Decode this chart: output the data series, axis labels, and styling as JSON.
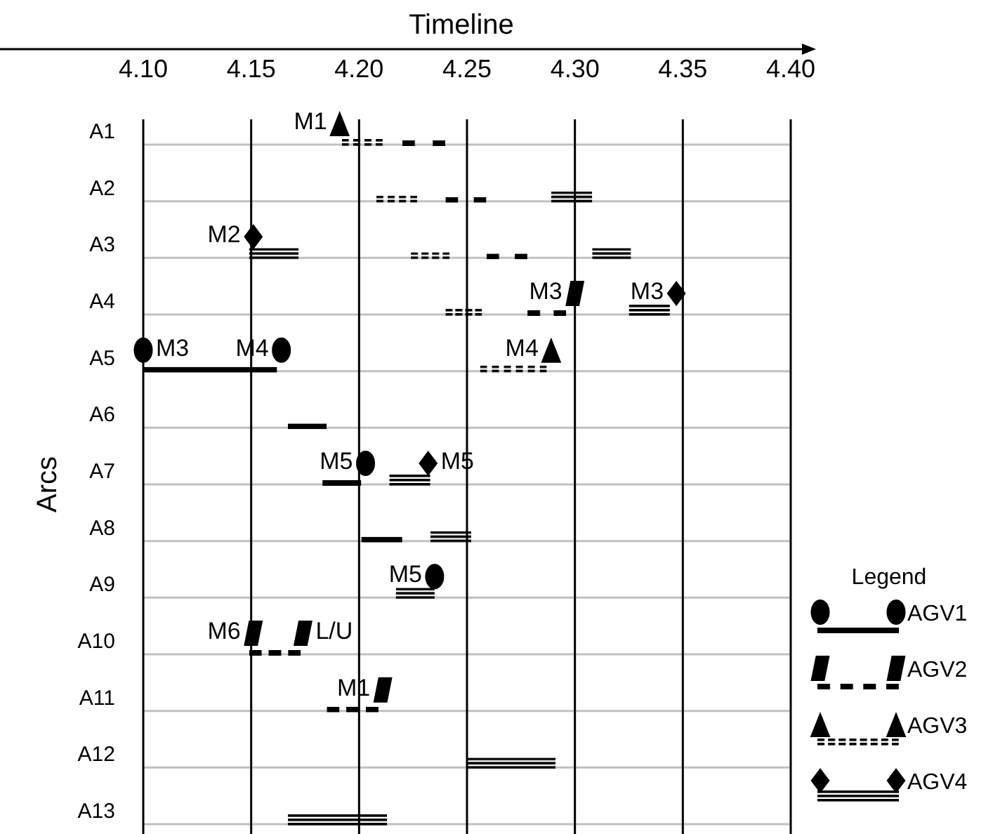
{
  "chart_data": {
    "type": "bar",
    "orientation": "horizontal",
    "xlabel": "Timeline",
    "ylabel": "Arcs",
    "legend_title": "Legend",
    "legend": "right",
    "grid": true,
    "categories": [
      "A1",
      "A2",
      "A3",
      "A4",
      "A5",
      "A6",
      "A7",
      "A8",
      "A9",
      "A10",
      "A11",
      "A12",
      "A13"
    ],
    "xlim": [
      4.1,
      4.4
    ],
    "xticks": [
      {
        "value": 4.1,
        "label": "4.10"
      },
      {
        "value": 4.15,
        "label": "4.15"
      },
      {
        "value": 4.2,
        "label": "4.20"
      },
      {
        "value": 4.25,
        "label": "4.25"
      },
      {
        "value": 4.3,
        "label": "4.30"
      },
      {
        "value": 4.35,
        "label": "4.35"
      },
      {
        "value": 4.4,
        "label": "4.40"
      }
    ],
    "series": [
      {
        "name": "AGV1",
        "color": "#000000",
        "line_style": "solid",
        "marker": "circle",
        "base": [
          null,
          null,
          null,
          null,
          4.1,
          4.167,
          4.183,
          4.201,
          null,
          null,
          null,
          null,
          null
        ],
        "values": [
          null,
          null,
          null,
          null,
          0.062,
          0.018,
          0.018,
          0.019,
          null,
          null,
          null,
          null,
          null
        ]
      },
      {
        "name": "AGV2",
        "color": "#000000",
        "line_style": "dashed",
        "marker": "square",
        "base": [
          4.22,
          4.24,
          4.259,
          4.278,
          null,
          null,
          null,
          null,
          null,
          4.149,
          4.185,
          null,
          null
        ],
        "values": [
          0.02,
          0.019,
          0.019,
          0.018,
          null,
          null,
          null,
          null,
          null,
          0.024,
          0.024,
          null,
          null
        ]
      },
      {
        "name": "AGV3",
        "color": "#000000",
        "line_style": "dotted",
        "marker": "triangle",
        "base": [
          4.192,
          4.208,
          4.224,
          4.24,
          4.256,
          null,
          null,
          null,
          null,
          null,
          null,
          null,
          null
        ],
        "values": [
          0.019,
          0.019,
          0.018,
          0.017,
          0.031,
          null,
          null,
          null,
          null,
          null,
          null,
          null,
          null
        ]
      },
      {
        "name": "AGV4",
        "color": "#000000",
        "line_style": "solid",
        "marker": "diamond",
        "base": [
          null,
          null,
          4.149,
          null,
          null,
          null,
          4.214,
          4.233,
          4.217,
          null,
          null,
          4.25,
          4.167
        ],
        "values": [
          null,
          null,
          0.023,
          null,
          null,
          null,
          0.019,
          0.019,
          0.018,
          null,
          null,
          0.041,
          0.046
        ]
      },
      {
        "color": "#000000",
        "line_style": "solid",
        "marker": "diamond",
        "base": [
          null,
          4.289,
          4.308,
          4.325,
          null,
          null,
          null,
          null,
          null,
          null,
          null,
          null,
          null
        ],
        "values": [
          null,
          0.019,
          0.018,
          0.019,
          null,
          null,
          null,
          null,
          null,
          null,
          null,
          null,
          null
        ]
      },
      {
        "type": "scatter",
        "color": "#000000",
        "marker": "circle",
        "values": [
          null,
          null,
          null,
          null,
          4.1,
          null,
          4.203,
          null,
          4.235,
          null,
          null,
          null,
          null
        ]
      },
      {
        "type": "scatter",
        "color": "#000000",
        "marker": "circle",
        "values": [
          null,
          null,
          null,
          null,
          4.164,
          null,
          null,
          null,
          null,
          null,
          null,
          null,
          null
        ]
      },
      {
        "type": "scatter",
        "color": "#000000",
        "values": [
          null,
          null,
          null,
          4.3,
          null,
          null,
          null,
          null,
          null,
          4.151,
          4.211,
          null,
          null
        ]
      },
      {
        "type": "scatter",
        "color": "#000000",
        "values": [
          null,
          null,
          null,
          null,
          null,
          null,
          null,
          null,
          null,
          4.174,
          null,
          null,
          null
        ]
      },
      {
        "type": "scatter",
        "color": "#000000",
        "marker": "triangle",
        "values": [
          4.191,
          null,
          null,
          null,
          4.289,
          null,
          null,
          null,
          null,
          null,
          null,
          null,
          null
        ]
      },
      {
        "type": "scatter",
        "color": "#000000",
        "marker": "diamond",
        "values": [
          null,
          null,
          4.151,
          4.347,
          null,
          null,
          4.232,
          null,
          null,
          null,
          null,
          null,
          null
        ]
      }
    ],
    "annotations": [
      {
        "text": "M1",
        "x": 4.191,
        "y": "A1"
      },
      {
        "text": "M2",
        "x": 4.151,
        "y": "A3"
      },
      {
        "text": "M3",
        "x": 4.3,
        "y": "A4"
      },
      {
        "text": "M3",
        "x": 4.347,
        "y": "A4"
      },
      {
        "text": "M3",
        "x": 4.1,
        "y": "A5"
      },
      {
        "text": "M4",
        "x": 4.164,
        "y": "A5"
      },
      {
        "text": "M4",
        "x": 4.289,
        "y": "A5"
      },
      {
        "text": "M5",
        "x": 4.203,
        "y": "A7"
      },
      {
        "text": "M5",
        "x": 4.232,
        "y": "A7"
      },
      {
        "text": "M5",
        "x": 4.235,
        "y": "A9"
      },
      {
        "text": "M6",
        "x": 4.151,
        "y": "A10"
      },
      {
        "text": "L/U",
        "x": 4.174,
        "y": "A10"
      },
      {
        "text": "M1",
        "x": 4.211,
        "y": "A11"
      }
    ]
  }
}
